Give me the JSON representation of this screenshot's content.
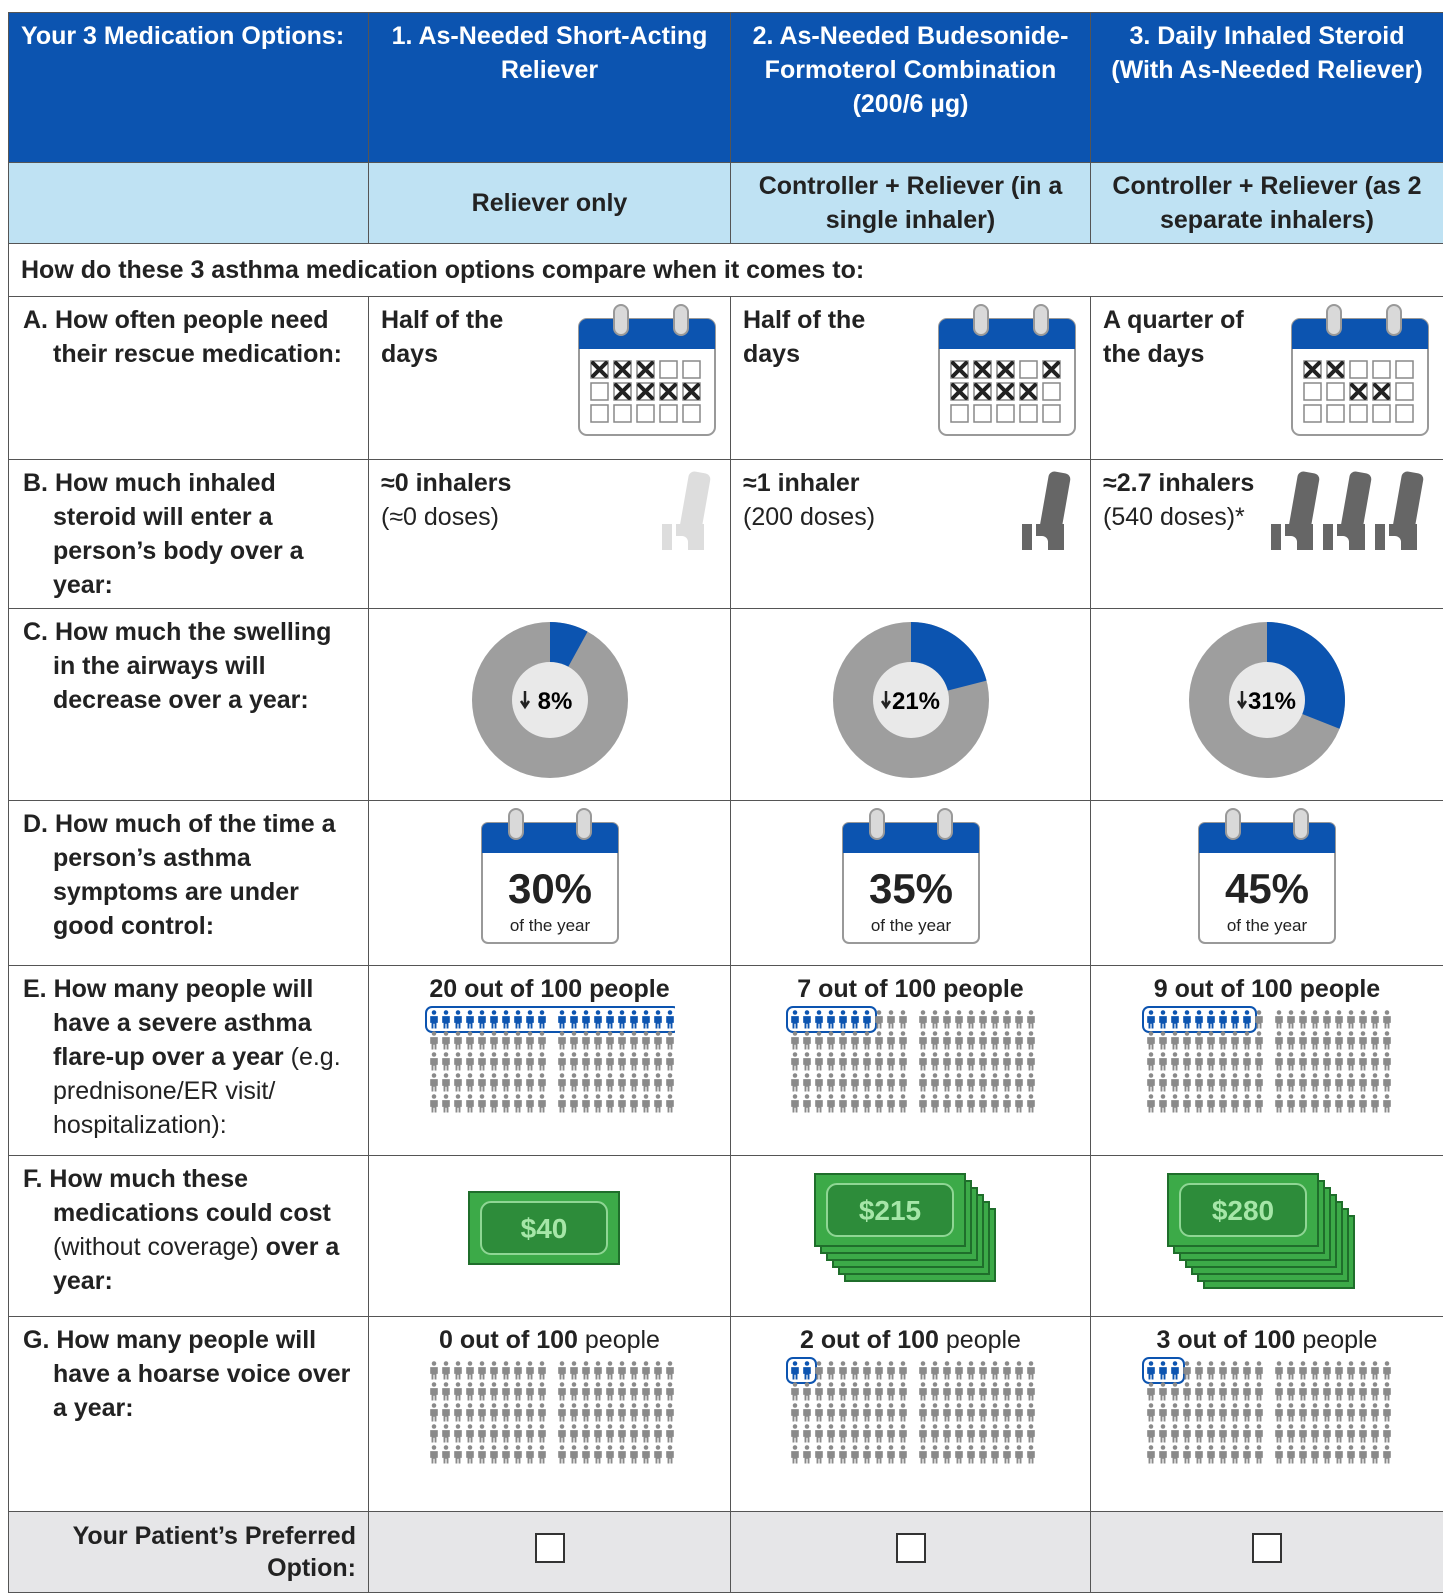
{
  "header": {
    "title": "Your 3 Medication Options:",
    "options": [
      {
        "name": "1. As-Needed Short-Acting Reliever",
        "kind": "Reliever only"
      },
      {
        "name": "2. As-Needed Budesonide-Formoterol Combination (200/6 µg)",
        "kind": "Controller + Reliever (in a single inhaler)"
      },
      {
        "name": "3. Daily Inhaled Steroid (With As-Needed Reliever)",
        "kind": "Controller + Reliever (as 2 separate inhalers)"
      }
    ]
  },
  "comparison_intro": "How do these 3 asthma medication options compare when it comes to:",
  "rows": [
    {
      "label": "A. How often people need their rescue medication:",
      "cells": [
        "Half of the days",
        "Half of the days",
        "A quarter of the days"
      ]
    },
    {
      "label": "B. How much inhaled steroid will enter a person’s body over a year:",
      "cells": [
        {
          "amount": "≈0 inhalers",
          "doses": "(≈0 doses)"
        },
        {
          "amount": "≈1 inhaler",
          "doses": "(200 doses)"
        },
        {
          "amount": "≈2.7 inhalers",
          "doses": "(540 doses)*"
        }
      ]
    },
    {
      "label": "C. How much the swelling in the airways will decrease over a year:",
      "values": [
        8,
        21,
        31
      ],
      "value_labels": [
        "8%",
        "21%",
        "31%"
      ]
    },
    {
      "label": "D. How much of the time a person’s asthma symptoms are under good control:",
      "cells": [
        "30%",
        "35%",
        "45%"
      ],
      "unit": "of the year"
    },
    {
      "label": "E. How many people will have a severe asthma flare-up over a year",
      "label_note": "(e.g. prednisone/ER visit/ hospitalization):",
      "values": [
        20,
        7,
        9
      ],
      "value_labels": [
        "20 out of 100 people",
        "7 out of 100 people",
        "9 out of 100 people"
      ]
    },
    {
      "label": "F. How much these medications could cost",
      "label_note": "(without coverage)",
      "label_end": "over a year:",
      "cells": [
        "$40",
        "$215",
        "$280"
      ]
    },
    {
      "label": "G. How many people will have a hoarse voice over a year:",
      "values": [
        0,
        2,
        3
      ],
      "value_labels": [
        "0 out of 100",
        "2 out of 100",
        "3 out of 100"
      ],
      "unit": "people"
    }
  ],
  "footer": {
    "label": "Your Patient’s Preferred Option:"
  }
}
